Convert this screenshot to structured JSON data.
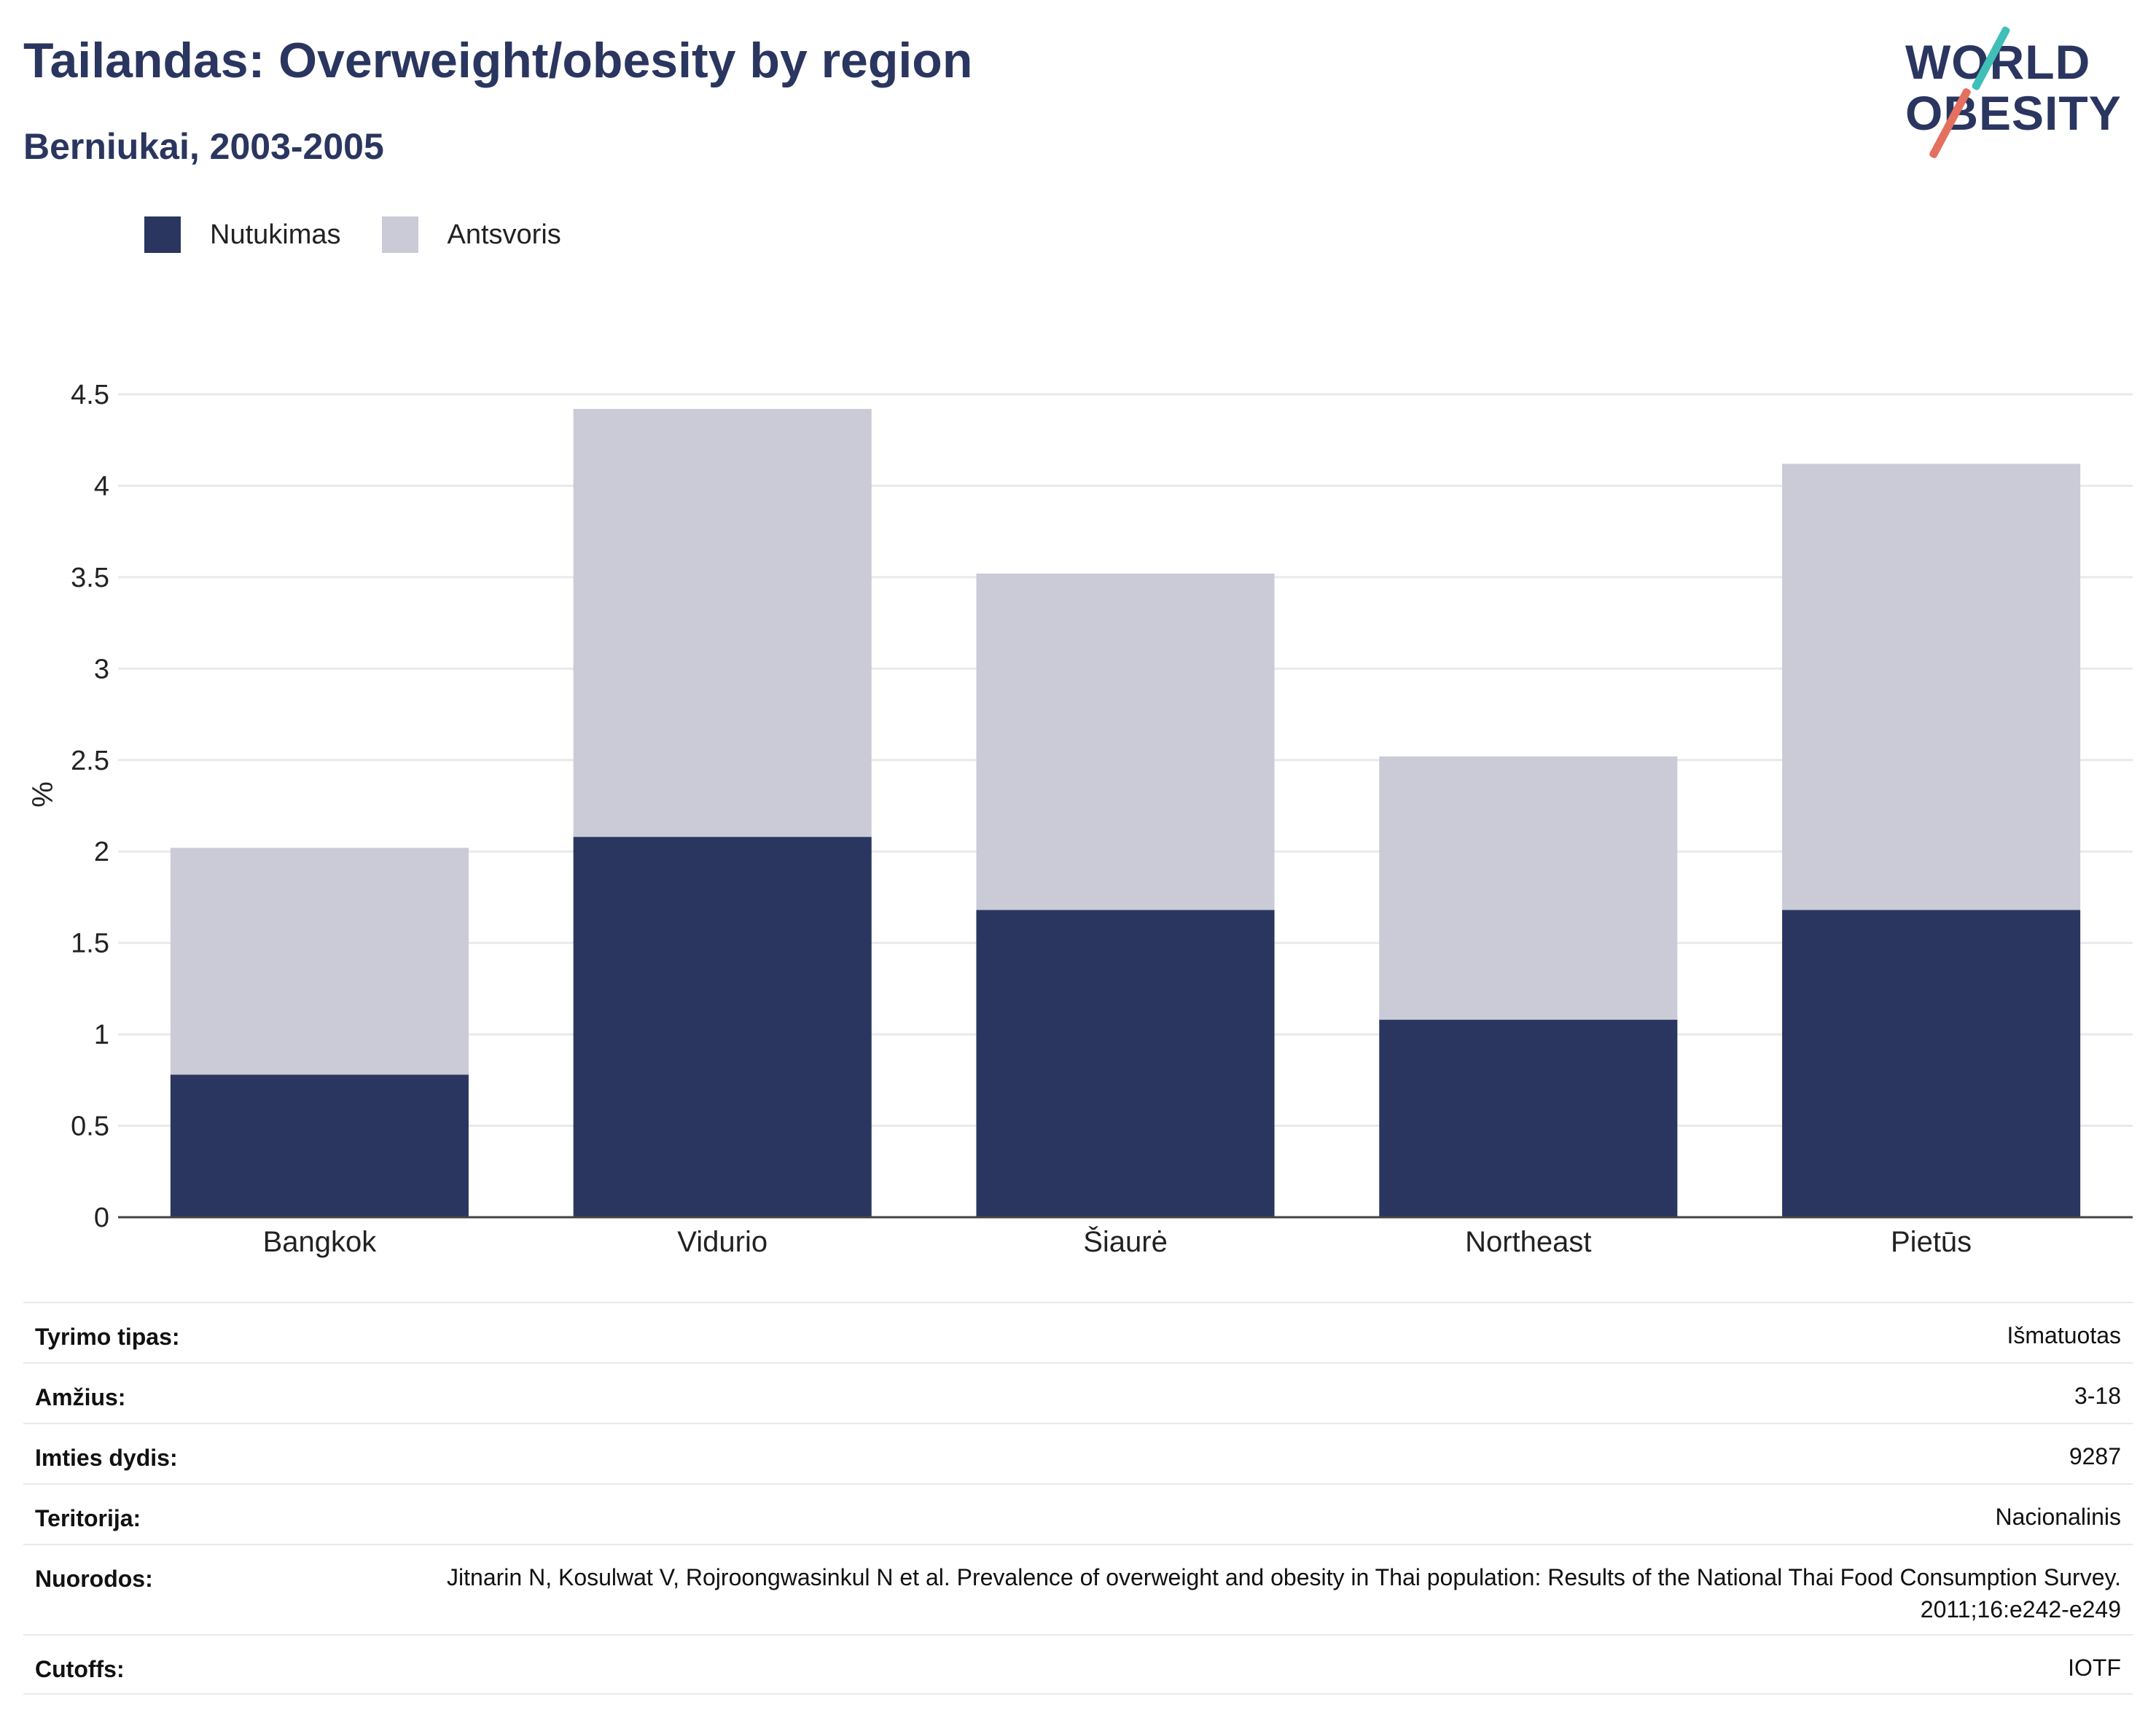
{
  "header": {
    "title": "Tailandas: Overweight/obesity by region",
    "subtitle": "Berniukai, 2003-2005"
  },
  "logo": {
    "line1": "WORLD",
    "line2": "OBESITY"
  },
  "legend": [
    {
      "label": "Nutukimas",
      "color": "#2a365f"
    },
    {
      "label": "Antsvoris",
      "color": "#cacbd6"
    }
  ],
  "chart_data": {
    "type": "bar",
    "stacked": true,
    "categories": [
      "Bangkok",
      "Vidurio",
      "Šiaurė",
      "Northeast",
      "Pietūs"
    ],
    "series": [
      {
        "name": "Nutukimas",
        "color": "#2a365f",
        "values": [
          0.78,
          2.08,
          1.68,
          1.08,
          1.68
        ]
      },
      {
        "name": "Antsvoris",
        "color": "#cacbd6",
        "values": [
          1.24,
          2.34,
          1.84,
          1.44,
          2.44
        ]
      }
    ],
    "ylabel": "%",
    "ylim": [
      0,
      4.5
    ],
    "yticks": [
      "0",
      "0.5",
      "1",
      "1.5",
      "2",
      "2.5",
      "3",
      "3.5",
      "4",
      "4.5"
    ],
    "grid": true,
    "legend_position": "top-left"
  },
  "meta": {
    "rows": [
      {
        "key": "Tyrimo tipas:",
        "value": "Išmatuotas"
      },
      {
        "key": "Amžius:",
        "value": "3-18"
      },
      {
        "key": "Imties dydis:",
        "value": "9287"
      },
      {
        "key": "Teritorija:",
        "value": "Nacionalinis"
      },
      {
        "key": "Nuorodos:",
        "value": "Jitnarin N, Kosulwat V, Rojroongwasinkul N et al. Prevalence of overweight and obesity in Thai population: Results of the National Thai Food Consumption Survey. 2011;16:e242-e249"
      },
      {
        "key": "Cutoffs:",
        "value": "IOTF"
      }
    ]
  }
}
